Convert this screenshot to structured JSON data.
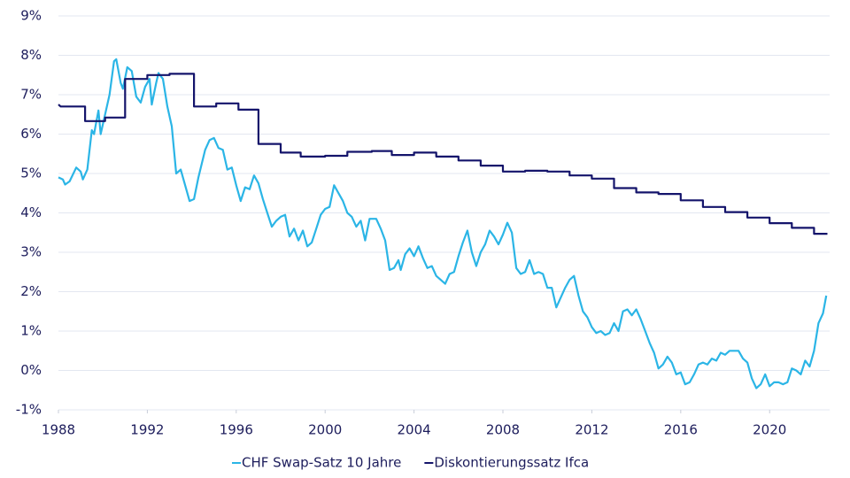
{
  "chart_data": {
    "type": "line",
    "xlim": [
      1988,
      2022.7
    ],
    "xticks": [
      1988,
      1992,
      1996,
      2000,
      2004,
      2008,
      2012,
      2016,
      2020
    ],
    "ylim": [
      -1,
      9
    ],
    "yticks": [
      {
        "value": -1,
        "label": "-1%"
      },
      {
        "value": 0,
        "label": "0%"
      },
      {
        "value": 1,
        "label": "1%"
      },
      {
        "value": 2,
        "label": "2%"
      },
      {
        "value": 3,
        "label": "3%"
      },
      {
        "value": 4,
        "label": "4%"
      },
      {
        "value": 5,
        "label": "5%"
      },
      {
        "value": 6,
        "label": "6%"
      },
      {
        "value": 7,
        "label": "7%"
      },
      {
        "value": 8,
        "label": "8%"
      },
      {
        "value": 9,
        "label": "9%"
      }
    ],
    "grid": true,
    "legend": "bottom",
    "series": [
      {
        "name": "CHF Swap-Satz 10 Jahre",
        "color": "#2bb5e6",
        "x": [
          1988.0,
          1988.2,
          1988.3,
          1988.5,
          1988.8,
          1989.0,
          1989.1,
          1989.3,
          1989.5,
          1989.6,
          1989.8,
          1989.9,
          1990.1,
          1990.3,
          1990.5,
          1990.6,
          1990.8,
          1990.9,
          1991.1,
          1991.3,
          1991.5,
          1991.7,
          1991.9,
          1992.1,
          1992.2,
          1992.4,
          1992.5,
          1992.7,
          1992.9,
          1993.1,
          1993.3,
          1993.5,
          1993.7,
          1993.9,
          1994.1,
          1994.3,
          1994.6,
          1994.8,
          1995.0,
          1995.2,
          1995.4,
          1995.6,
          1995.8,
          1996.0,
          1996.2,
          1996.4,
          1996.6,
          1996.8,
          1997.0,
          1997.2,
          1997.4,
          1997.6,
          1997.8,
          1998.0,
          1998.2,
          1998.4,
          1998.6,
          1998.8,
          1999.0,
          1999.2,
          1999.4,
          1999.6,
          1999.8,
          2000.0,
          2000.2,
          2000.4,
          2000.6,
          2000.8,
          2001.0,
          2001.2,
          2001.4,
          2001.6,
          2001.8,
          2002.0,
          2002.3,
          2002.5,
          2002.7,
          2002.9,
          2003.1,
          2003.3,
          2003.4,
          2003.6,
          2003.8,
          2004.0,
          2004.2,
          2004.4,
          2004.6,
          2004.8,
          2005.0,
          2005.2,
          2005.4,
          2005.6,
          2005.8,
          2006.0,
          2006.2,
          2006.4,
          2006.6,
          2006.8,
          2007.0,
          2007.2,
          2007.4,
          2007.6,
          2007.8,
          2008.0,
          2008.2,
          2008.4,
          2008.6,
          2008.8,
          2009.0,
          2009.2,
          2009.4,
          2009.6,
          2009.8,
          2010.0,
          2010.2,
          2010.4,
          2010.6,
          2010.8,
          2011.0,
          2011.2,
          2011.4,
          2011.6,
          2011.8,
          2012.0,
          2012.2,
          2012.4,
          2012.6,
          2012.8,
          2013.0,
          2013.2,
          2013.4,
          2013.6,
          2013.8,
          2014.0,
          2014.2,
          2014.4,
          2014.6,
          2014.8,
          2015.0,
          2015.2,
          2015.4,
          2015.6,
          2015.8,
          2016.0,
          2016.2,
          2016.4,
          2016.6,
          2016.8,
          2017.0,
          2017.2,
          2017.4,
          2017.6,
          2017.8,
          2018.0,
          2018.2,
          2018.4,
          2018.6,
          2018.8,
          2019.0,
          2019.2,
          2019.4,
          2019.6,
          2019.8,
          2020.0,
          2020.2,
          2020.4,
          2020.6,
          2020.8,
          2021.0,
          2021.2,
          2021.4,
          2021.6,
          2021.8,
          2022.0,
          2022.2,
          2022.4,
          2022.55
        ],
        "values": [
          4.9,
          4.85,
          4.72,
          4.8,
          5.15,
          5.05,
          4.85,
          5.1,
          6.1,
          6.0,
          6.6,
          6.0,
          6.5,
          7.0,
          7.85,
          7.9,
          7.3,
          7.15,
          7.7,
          7.6,
          6.95,
          6.8,
          7.2,
          7.4,
          6.75,
          7.3,
          7.55,
          7.4,
          6.7,
          6.2,
          5.0,
          5.1,
          4.7,
          4.3,
          4.35,
          4.9,
          5.6,
          5.85,
          5.9,
          5.65,
          5.6,
          5.1,
          5.15,
          4.7,
          4.3,
          4.65,
          4.6,
          4.95,
          4.75,
          4.35,
          4.0,
          3.65,
          3.8,
          3.9,
          3.95,
          3.4,
          3.6,
          3.3,
          3.55,
          3.15,
          3.25,
          3.6,
          3.95,
          4.1,
          4.15,
          4.7,
          4.5,
          4.3,
          4.0,
          3.9,
          3.65,
          3.8,
          3.3,
          3.85,
          3.85,
          3.6,
          3.3,
          2.55,
          2.6,
          2.8,
          2.55,
          2.95,
          3.1,
          2.9,
          3.15,
          2.85,
          2.6,
          2.65,
          2.4,
          2.3,
          2.2,
          2.45,
          2.5,
          2.9,
          3.25,
          3.55,
          3.0,
          2.65,
          3.0,
          3.2,
          3.55,
          3.4,
          3.2,
          3.45,
          3.75,
          3.5,
          2.6,
          2.45,
          2.5,
          2.8,
          2.45,
          2.5,
          2.45,
          2.1,
          2.1,
          1.6,
          1.85,
          2.1,
          2.3,
          2.4,
          1.9,
          1.5,
          1.35,
          1.1,
          0.95,
          1.0,
          0.9,
          0.95,
          1.2,
          1.0,
          1.5,
          1.55,
          1.4,
          1.55,
          1.3,
          1.0,
          0.7,
          0.45,
          0.05,
          0.15,
          0.35,
          0.2,
          -0.1,
          -0.05,
          -0.35,
          -0.3,
          -0.1,
          0.15,
          0.2,
          0.15,
          0.3,
          0.25,
          0.45,
          0.4,
          0.5,
          0.5,
          0.5,
          0.3,
          0.2,
          -0.2,
          -0.45,
          -0.35,
          -0.1,
          -0.4,
          -0.3,
          -0.3,
          -0.35,
          -0.3,
          0.05,
          0.0,
          -0.1,
          0.25,
          0.1,
          0.5,
          1.2,
          1.45,
          1.9
        ]
      },
      {
        "name": "Diskontierungssatz Ifca",
        "color": "#14146b",
        "x": [
          1988.0,
          1988.1,
          1989.2,
          1989.2,
          1990.1,
          1990.1,
          1991.0,
          1991.0,
          1992.0,
          1992.0,
          1993.0,
          1993.0,
          1994.1,
          1994.1,
          1995.1,
          1995.1,
          1996.1,
          1996.1,
          1997.0,
          1997.0,
          1998.0,
          1998.0,
          1998.9,
          1998.9,
          2000.0,
          2000.0,
          2001.0,
          2001.0,
          2002.1,
          2002.1,
          2003.0,
          2003.0,
          2004.0,
          2004.0,
          2005.0,
          2005.0,
          2006.0,
          2006.0,
          2007.0,
          2007.0,
          2008.0,
          2008.0,
          2009.0,
          2009.0,
          2010.0,
          2010.0,
          2011.0,
          2011.0,
          2012.0,
          2012.0,
          2013.0,
          2013.0,
          2014.0,
          2014.0,
          2015.0,
          2015.0,
          2016.0,
          2016.0,
          2017.0,
          2017.0,
          2018.0,
          2018.0,
          2019.0,
          2019.0,
          2020.0,
          2020.0,
          2021.0,
          2021.0,
          2022.0,
          2022.0,
          2022.6
        ],
        "values": [
          6.75,
          6.7,
          6.7,
          6.33,
          6.33,
          6.42,
          6.42,
          7.4,
          7.4,
          7.5,
          7.5,
          7.53,
          7.53,
          6.7,
          6.7,
          6.78,
          6.78,
          6.62,
          6.62,
          5.75,
          5.75,
          5.53,
          5.53,
          5.43,
          5.43,
          5.45,
          5.45,
          5.55,
          5.55,
          5.57,
          5.57,
          5.47,
          5.47,
          5.53,
          5.53,
          5.43,
          5.43,
          5.33,
          5.33,
          5.2,
          5.2,
          5.05,
          5.05,
          5.07,
          5.07,
          5.05,
          5.05,
          4.95,
          4.95,
          4.87,
          4.87,
          4.63,
          4.63,
          4.52,
          4.52,
          4.48,
          4.48,
          4.32,
          4.32,
          4.15,
          4.15,
          4.02,
          4.02,
          3.88,
          3.88,
          3.74,
          3.74,
          3.62,
          3.62,
          3.47,
          3.47
        ]
      }
    ]
  }
}
